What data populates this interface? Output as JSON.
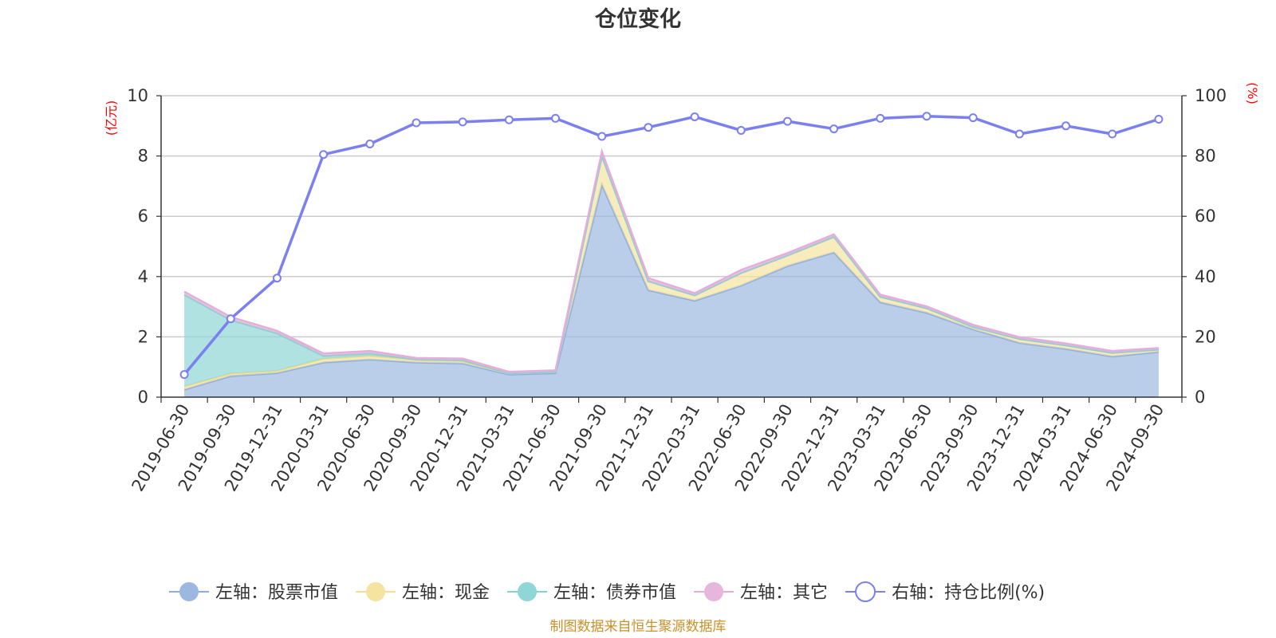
{
  "chart_data": {
    "type": "area",
    "title": "仓位变化",
    "left_axis_unit": "(亿元)",
    "right_axis_unit": "(%)",
    "ylim_left": [
      0,
      10
    ],
    "ylim_right": [
      0,
      100
    ],
    "left_ticks": [
      "0",
      "2",
      "4",
      "6",
      "8",
      "10"
    ],
    "right_ticks": [
      "0",
      "20",
      "40",
      "60",
      "80",
      "100"
    ],
    "categories": [
      "2019-06-30",
      "2019-09-30",
      "2019-12-31",
      "2020-03-31",
      "2020-06-30",
      "2020-09-30",
      "2020-12-31",
      "2021-03-31",
      "2021-06-30",
      "2021-09-30",
      "2021-12-31",
      "2022-03-31",
      "2022-06-30",
      "2022-09-30",
      "2022-12-31",
      "2023-03-31",
      "2023-06-30",
      "2023-09-30",
      "2023-12-31",
      "2024-03-31",
      "2024-06-30",
      "2024-09-30"
    ],
    "series": [
      {
        "name": "左轴：股票市值",
        "axis": "left",
        "type": "stacked-area",
        "color": "#9cb8e0",
        "values": [
          0.25,
          0.7,
          0.8,
          1.15,
          1.25,
          1.15,
          1.12,
          0.75,
          0.8,
          7.05,
          3.55,
          3.2,
          3.7,
          4.35,
          4.8,
          3.15,
          2.8,
          2.25,
          1.8,
          1.6,
          1.35,
          1.5
        ]
      },
      {
        "name": "左轴：现金",
        "axis": "left",
        "type": "stacked-area",
        "color": "#f5e3a0",
        "values": [
          0.1,
          0.08,
          0.07,
          0.12,
          0.12,
          0.08,
          0.08,
          0.04,
          0.04,
          0.95,
          0.3,
          0.18,
          0.42,
          0.35,
          0.52,
          0.18,
          0.15,
          0.08,
          0.13,
          0.12,
          0.12,
          0.08
        ]
      },
      {
        "name": "左轴：债券市值",
        "axis": "left",
        "type": "stacked-area",
        "color": "#8fd6d6",
        "values": [
          3.05,
          1.78,
          1.25,
          0.1,
          0.08,
          0.02,
          0.02,
          0,
          0,
          0,
          0,
          0,
          0,
          0,
          0,
          0,
          0,
          0,
          0,
          0,
          0,
          0
        ]
      },
      {
        "name": "左轴：其它",
        "axis": "left",
        "type": "stacked-area",
        "color": "#e6b6dc",
        "values": [
          0.1,
          0.1,
          0.08,
          0.08,
          0.08,
          0.05,
          0.06,
          0.05,
          0.05,
          0.15,
          0.1,
          0.07,
          0.1,
          0.08,
          0.08,
          0.07,
          0.06,
          0.07,
          0.06,
          0.06,
          0.06,
          0.05
        ]
      },
      {
        "name": "右轴：持仓比例(%)",
        "axis": "right",
        "type": "line",
        "color": "#7b7ff0",
        "values": [
          7.5,
          26,
          39.5,
          80.5,
          84,
          91,
          91.3,
          92,
          92.5,
          86.5,
          89.5,
          93,
          88.5,
          91.5,
          89,
          92.5,
          93.2,
          92.7,
          87.3,
          90,
          87.3,
          92.2
        ]
      }
    ],
    "legend_position": "bottom",
    "grid": true
  },
  "source_note": "制图数据来自恒生聚源数据库"
}
